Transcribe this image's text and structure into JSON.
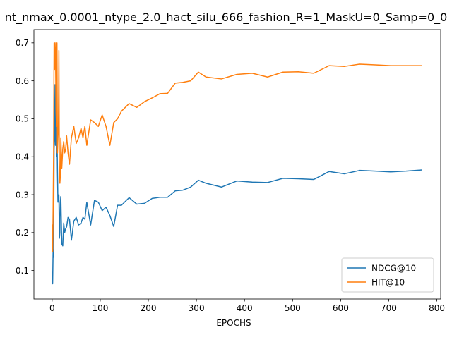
{
  "chart_data": {
    "type": "line",
    "title": "nt_nmax_0.0001_ntype_2.0_hact_silu_666_fashion_R=1_MaskU=0_Samp=0_0",
    "xlabel": "EPOCHS",
    "ylabel": "",
    "xlim": [
      -38,
      808
    ],
    "ylim": [
      0.025,
      0.735
    ],
    "xticks": [
      0,
      100,
      200,
      300,
      400,
      500,
      600,
      700,
      800
    ],
    "yticks": [
      0.1,
      0.2,
      0.3,
      0.4,
      0.5,
      0.6,
      0.7
    ],
    "legend_position": "lower right",
    "grid": false,
    "series": [
      {
        "name": "NDCG@10",
        "color": "#1f77b4",
        "x": [
          0,
          1,
          2,
          3,
          4,
          5,
          6,
          7,
          8,
          9,
          10,
          11,
          12,
          13,
          14,
          15,
          16,
          17,
          18,
          20,
          22,
          24,
          26,
          28,
          30,
          33,
          36,
          40,
          45,
          50,
          55,
          60,
          64,
          68,
          72,
          80,
          88,
          96,
          104,
          112,
          120,
          128,
          136,
          144,
          160,
          176,
          192,
          208,
          224,
          240,
          256,
          272,
          288,
          304,
          320,
          352,
          384,
          416,
          448,
          480,
          512,
          544,
          576,
          608,
          640,
          672,
          704,
          736,
          768
        ],
        "y": [
          0.095,
          0.065,
          0.155,
          0.135,
          0.42,
          0.45,
          0.59,
          0.43,
          0.47,
          0.4,
          0.48,
          0.36,
          0.28,
          0.29,
          0.3,
          0.185,
          0.2,
          0.28,
          0.295,
          0.17,
          0.165,
          0.225,
          0.2,
          0.21,
          0.215,
          0.24,
          0.235,
          0.18,
          0.23,
          0.24,
          0.22,
          0.225,
          0.24,
          0.235,
          0.28,
          0.22,
          0.285,
          0.28,
          0.258,
          0.267,
          0.245,
          0.216,
          0.272,
          0.272,
          0.292,
          0.275,
          0.277,
          0.29,
          0.293,
          0.293,
          0.31,
          0.312,
          0.32,
          0.338,
          0.33,
          0.32,
          0.336,
          0.333,
          0.332,
          0.343,
          0.342,
          0.34,
          0.361,
          0.355,
          0.364,
          0.362,
          0.36,
          0.362,
          0.365
        ]
      },
      {
        "name": "HIT@10",
        "color": "#ff7f0e",
        "x": [
          0,
          1,
          2,
          3,
          4,
          5,
          6,
          7,
          8,
          9,
          10,
          11,
          12,
          13,
          14,
          15,
          16,
          17,
          18,
          20,
          22,
          24,
          26,
          28,
          30,
          33,
          36,
          40,
          45,
          50,
          55,
          60,
          64,
          68,
          72,
          80,
          88,
          96,
          104,
          112,
          120,
          128,
          136,
          144,
          160,
          176,
          192,
          208,
          224,
          240,
          256,
          272,
          288,
          304,
          320,
          352,
          384,
          416,
          448,
          480,
          512,
          544,
          576,
          608,
          640,
          672,
          704,
          736,
          768
        ],
        "y": [
          0.22,
          0.15,
          0.26,
          0.41,
          0.7,
          0.63,
          0.7,
          0.67,
          0.52,
          0.48,
          0.7,
          0.41,
          0.45,
          0.48,
          0.68,
          0.36,
          0.33,
          0.35,
          0.45,
          0.37,
          0.42,
          0.44,
          0.41,
          0.42,
          0.455,
          0.41,
          0.38,
          0.45,
          0.48,
          0.435,
          0.45,
          0.475,
          0.45,
          0.48,
          0.43,
          0.497,
          0.49,
          0.48,
          0.51,
          0.48,
          0.43,
          0.49,
          0.5,
          0.52,
          0.54,
          0.53,
          0.545,
          0.555,
          0.566,
          0.567,
          0.594,
          0.596,
          0.6,
          0.623,
          0.61,
          0.605,
          0.617,
          0.62,
          0.61,
          0.623,
          0.624,
          0.62,
          0.64,
          0.638,
          0.644,
          0.642,
          0.64,
          0.64,
          0.64
        ]
      }
    ]
  }
}
